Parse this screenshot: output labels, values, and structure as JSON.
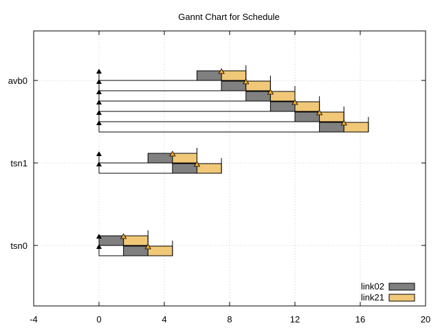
{
  "chart_data": {
    "type": "gantt",
    "title": "Gannt Chart for Schedule",
    "xlim": [
      -4,
      20
    ],
    "xticks": [
      -4,
      0,
      4,
      8,
      12,
      16,
      20
    ],
    "categories": [
      "tsn0",
      "tsn1",
      "avb0"
    ],
    "grid": true,
    "legend": {
      "placement": "bottom-right",
      "entries": [
        {
          "name": "link02",
          "color": "#808080"
        },
        {
          "name": "link21",
          "color": "#f0c878"
        }
      ]
    },
    "tasks": [
      {
        "stream": "avb0",
        "release": 0,
        "link02": [
          6,
          7.5
        ],
        "link21": [
          7.5,
          9
        ],
        "deadline": 9
      },
      {
        "stream": "avb0",
        "release": 0,
        "link02": [
          7.5,
          9
        ],
        "link21": [
          9,
          10.5
        ],
        "deadline": 10.5
      },
      {
        "stream": "avb0",
        "release": 0,
        "link02": [
          9,
          10.5
        ],
        "link21": [
          10.5,
          12
        ],
        "deadline": 12
      },
      {
        "stream": "avb0",
        "release": 0,
        "link02": [
          10.5,
          12
        ],
        "link21": [
          12,
          13.5
        ],
        "deadline": 13.5
      },
      {
        "stream": "avb0",
        "release": 0,
        "link02": [
          12,
          13.5
        ],
        "link21": [
          13.5,
          15
        ],
        "deadline": 15
      },
      {
        "stream": "avb0",
        "release": 0,
        "link02": [
          13.5,
          15
        ],
        "link21": [
          15,
          16.5
        ],
        "deadline": 16.5
      },
      {
        "stream": "tsn1",
        "release": 0,
        "link02": [
          3,
          4.5
        ],
        "link21": [
          4.5,
          6
        ],
        "deadline": 6
      },
      {
        "stream": "tsn1",
        "release": 0,
        "link02": [
          4.5,
          6
        ],
        "link21": [
          6,
          7.5
        ],
        "deadline": 7.5
      },
      {
        "stream": "tsn0",
        "release": 0,
        "link02": [
          0,
          1.5
        ],
        "link21": [
          1.5,
          3
        ],
        "deadline": 3
      },
      {
        "stream": "tsn0",
        "release": 0,
        "link02": [
          1.5,
          3
        ],
        "link21": [
          3,
          4.5
        ],
        "deadline": 4.5
      }
    ]
  }
}
